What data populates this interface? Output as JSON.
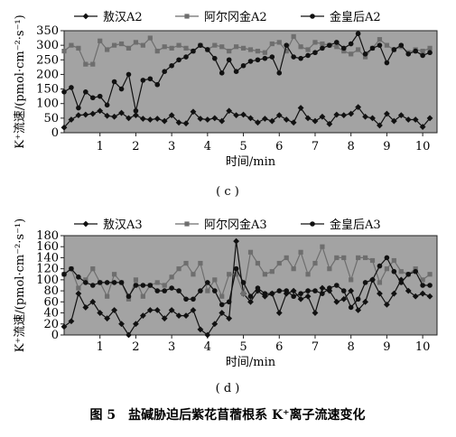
{
  "caption": "图 5　盐碱胁迫后紫花苜蓿根系 K⁺离子流速变化",
  "colors": {
    "plot_bg": "#a3a3a3",
    "series_dark": "#111111",
    "series_gray": "#6e6e6e"
  },
  "chart_data": [
    {
      "type": "line",
      "panel_label": "( c )",
      "xlabel": "时间/min",
      "ylabel": "K⁺流速/(pmol·cm⁻²·s⁻¹)",
      "xlim": [
        0,
        10.4
      ],
      "ylim": [
        0,
        350
      ],
      "xticks": [
        "1",
        "2",
        "3",
        "4",
        "5",
        "6",
        "7",
        "8",
        "9",
        "10"
      ],
      "yticks": [
        "0",
        "50",
        "100",
        "150",
        "200",
        "250",
        "300",
        "350"
      ],
      "grid": false,
      "legend_position": "top",
      "series": [
        {
          "name": "敖汉A2",
          "marker": "diamond",
          "color": "dark",
          "x": [
            0.0,
            0.2,
            0.4,
            0.6,
            0.8,
            1.0,
            1.2,
            1.4,
            1.6,
            1.8,
            2.0,
            2.2,
            2.4,
            2.6,
            2.8,
            3.0,
            3.2,
            3.4,
            3.6,
            3.8,
            4.0,
            4.2,
            4.4,
            4.6,
            4.8,
            5.0,
            5.2,
            5.4,
            5.6,
            5.8,
            6.0,
            6.2,
            6.4,
            6.6,
            6.8,
            7.0,
            7.2,
            7.4,
            7.6,
            7.8,
            8.0,
            8.2,
            8.4,
            8.6,
            8.8,
            9.0,
            9.2,
            9.4,
            9.6,
            9.8,
            10.0,
            10.2
          ],
          "values": [
            18,
            45,
            60,
            62,
            65,
            75,
            58,
            55,
            68,
            50,
            60,
            48,
            45,
            48,
            40,
            60,
            35,
            32,
            72,
            48,
            45,
            50,
            40,
            75,
            60,
            62,
            50,
            35,
            48,
            40,
            60,
            45,
            35,
            85,
            50,
            40,
            55,
            30,
            62,
            60,
            65,
            88,
            55,
            50,
            25,
            65,
            40,
            60,
            45,
            45,
            20,
            50
          ]
        },
        {
          "name": "阿尔冈金A2",
          "marker": "square",
          "color": "gray",
          "x": [
            0.0,
            0.2,
            0.4,
            0.6,
            0.8,
            1.0,
            1.2,
            1.4,
            1.6,
            1.8,
            2.0,
            2.2,
            2.4,
            2.6,
            2.8,
            3.0,
            3.2,
            3.4,
            3.6,
            3.8,
            4.0,
            4.2,
            4.4,
            4.6,
            4.8,
            5.0,
            5.2,
            5.4,
            5.6,
            5.8,
            6.0,
            6.2,
            6.4,
            6.6,
            6.8,
            7.0,
            7.2,
            7.4,
            7.6,
            7.8,
            8.0,
            8.2,
            8.4,
            8.6,
            8.8,
            9.0,
            9.2,
            9.4,
            9.6,
            9.8,
            10.0,
            10.2
          ],
          "values": [
            280,
            300,
            290,
            235,
            235,
            315,
            285,
            300,
            305,
            290,
            310,
            300,
            325,
            280,
            295,
            290,
            300,
            290,
            280,
            300,
            285,
            300,
            295,
            280,
            295,
            290,
            285,
            280,
            275,
            305,
            310,
            280,
            330,
            295,
            285,
            310,
            305,
            300,
            295,
            280,
            270,
            285,
            260,
            290,
            320,
            300,
            285,
            295,
            275,
            285,
            280,
            290
          ]
        },
        {
          "name": "金皇后A2",
          "marker": "circle",
          "color": "dark",
          "x": [
            0.0,
            0.2,
            0.4,
            0.6,
            0.8,
            1.0,
            1.2,
            1.4,
            1.6,
            1.8,
            2.0,
            2.2,
            2.4,
            2.6,
            2.8,
            3.0,
            3.2,
            3.4,
            3.6,
            3.8,
            4.0,
            4.2,
            4.4,
            4.6,
            4.8,
            5.0,
            5.2,
            5.4,
            5.6,
            5.8,
            6.0,
            6.2,
            6.4,
            6.6,
            6.8,
            7.0,
            7.2,
            7.4,
            7.6,
            7.8,
            8.0,
            8.2,
            8.4,
            8.6,
            8.8,
            9.0,
            9.2,
            9.4,
            9.6,
            9.8,
            10.0,
            10.2
          ],
          "values": [
            140,
            155,
            85,
            140,
            120,
            125,
            95,
            175,
            150,
            200,
            75,
            180,
            185,
            165,
            210,
            230,
            250,
            260,
            280,
            300,
            285,
            255,
            205,
            250,
            210,
            230,
            245,
            250,
            255,
            260,
            205,
            300,
            260,
            255,
            265,
            275,
            290,
            300,
            310,
            290,
            305,
            340,
            270,
            290,
            300,
            240,
            285,
            300,
            270,
            280,
            265,
            275
          ]
        }
      ]
    },
    {
      "type": "line",
      "panel_label": "( d )",
      "xlabel": "时间/min",
      "ylabel": "K⁺流速/(pmol·cm⁻²·s⁻¹)",
      "xlim": [
        0,
        10.4
      ],
      "ylim": [
        0,
        180
      ],
      "xticks": [
        "1",
        "2",
        "3",
        "4",
        "5",
        "6",
        "7",
        "8",
        "9",
        "10"
      ],
      "yticks": [
        "0",
        "20",
        "40",
        "60",
        "80",
        "100",
        "120",
        "140",
        "160",
        "180"
      ],
      "grid": false,
      "legend_position": "top",
      "series": [
        {
          "name": "敖汉A3",
          "marker": "diamond",
          "color": "dark",
          "x": [
            0.0,
            0.2,
            0.4,
            0.6,
            0.8,
            1.0,
            1.2,
            1.4,
            1.6,
            1.8,
            2.0,
            2.2,
            2.4,
            2.6,
            2.8,
            3.0,
            3.2,
            3.4,
            3.6,
            3.8,
            4.0,
            4.2,
            4.4,
            4.6,
            4.8,
            5.0,
            5.2,
            5.4,
            5.6,
            5.8,
            6.0,
            6.2,
            6.4,
            6.6,
            6.8,
            7.0,
            7.2,
            7.4,
            7.6,
            7.8,
            8.0,
            8.2,
            8.4,
            8.6,
            8.8,
            9.0,
            9.2,
            9.4,
            9.6,
            9.8,
            10.0,
            10.2
          ],
          "values": [
            15,
            25,
            75,
            50,
            60,
            40,
            30,
            45,
            20,
            0,
            20,
            35,
            45,
            45,
            30,
            45,
            35,
            35,
            45,
            10,
            0,
            20,
            40,
            30,
            170,
            75,
            60,
            80,
            70,
            75,
            40,
            75,
            80,
            65,
            70,
            40,
            85,
            80,
            60,
            65,
            80,
            45,
            60,
            100,
            75,
            55,
            75,
            100,
            80,
            70,
            75,
            70
          ]
        },
        {
          "name": "阿尔冈金A3",
          "marker": "square",
          "color": "gray",
          "x": [
            0.0,
            0.2,
            0.4,
            0.6,
            0.8,
            1.0,
            1.2,
            1.4,
            1.6,
            1.8,
            2.0,
            2.2,
            2.4,
            2.6,
            2.8,
            3.0,
            3.2,
            3.4,
            3.6,
            3.8,
            4.0,
            4.2,
            4.4,
            4.6,
            4.8,
            5.0,
            5.2,
            5.4,
            5.6,
            5.8,
            6.0,
            6.2,
            6.4,
            6.6,
            6.8,
            7.0,
            7.2,
            7.4,
            7.6,
            7.8,
            8.0,
            8.2,
            8.4,
            8.6,
            8.8,
            9.0,
            9.2,
            9.4,
            9.6,
            9.8,
            10.0,
            10.2
          ],
          "values": [
            110,
            120,
            85,
            100,
            120,
            95,
            70,
            110,
            95,
            65,
            100,
            70,
            90,
            95,
            90,
            105,
            120,
            130,
            110,
            130,
            80,
            100,
            70,
            110,
            110,
            75,
            150,
            130,
            110,
            115,
            130,
            140,
            120,
            150,
            110,
            130,
            160,
            120,
            140,
            140,
            100,
            140,
            140,
            135,
            95,
            120,
            135,
            115,
            110,
            120,
            100,
            110
          ]
        },
        {
          "name": "金皇后A3",
          "marker": "circle",
          "color": "dark",
          "x": [
            0.0,
            0.2,
            0.4,
            0.6,
            0.8,
            1.0,
            1.2,
            1.4,
            1.6,
            1.8,
            2.0,
            2.2,
            2.4,
            2.6,
            2.8,
            3.0,
            3.2,
            3.4,
            3.6,
            3.8,
            4.0,
            4.2,
            4.4,
            4.6,
            4.8,
            5.0,
            5.2,
            5.4,
            5.6,
            5.8,
            6.0,
            6.2,
            6.4,
            6.6,
            6.8,
            7.0,
            7.2,
            7.4,
            7.6,
            7.8,
            8.0,
            8.2,
            8.4,
            8.6,
            8.8,
            9.0,
            9.2,
            9.4,
            9.6,
            9.8,
            10.0,
            10.2
          ],
          "values": [
            110,
            120,
            105,
            95,
            90,
            95,
            95,
            95,
            95,
            70,
            90,
            90,
            90,
            80,
            80,
            85,
            80,
            65,
            65,
            80,
            95,
            80,
            55,
            60,
            120,
            95,
            70,
            85,
            75,
            75,
            80,
            80,
            70,
            75,
            80,
            80,
            75,
            85,
            90,
            80,
            50,
            65,
            95,
            100,
            125,
            140,
            115,
            95,
            110,
            115,
            90,
            90
          ]
        }
      ]
    }
  ]
}
